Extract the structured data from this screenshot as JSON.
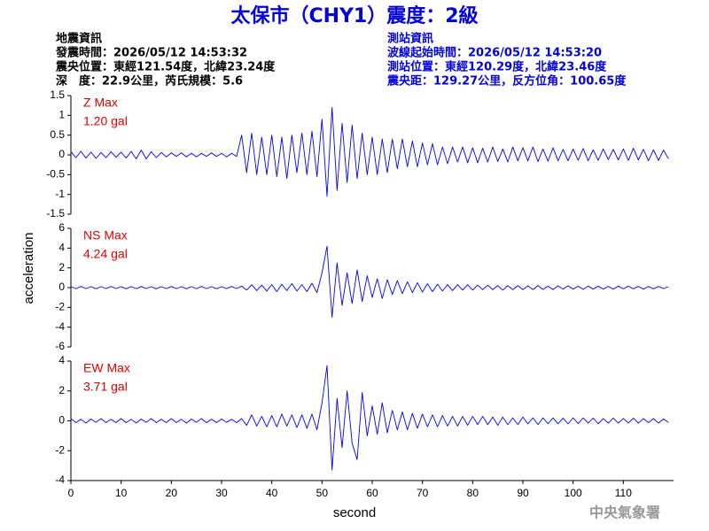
{
  "header": {
    "title": "太保市（CHY1）震度：2級",
    "left": [
      "地震資訊",
      "發震時間：2026/05/12 14:53:32",
      "震央位置：東經121.54度，北緯23.24度",
      "深　度：22.9公里，芮氏規模：5.6"
    ],
    "right": [
      "測站資訊",
      "波線起始時間：2026/05/12 14:53:20",
      "測站位置：東經120.29度，北緯23.46度",
      "震央距：129.27公里，反方位角：100.65度"
    ]
  },
  "axis_labels": {
    "y": "acceleration",
    "x": "second"
  },
  "footer": "中央氣象署",
  "chart_data": [
    {
      "type": "line",
      "annotation": [
        "Z Max",
        "1.20 gal"
      ],
      "color": "#0000ff",
      "xlim": [
        0,
        120
      ],
      "ylim": [
        -1.5,
        1.5
      ],
      "yticks": [
        -1.5,
        -1,
        -0.5,
        0,
        0.5,
        1,
        1.5
      ],
      "x": [
        0,
        1,
        2,
        3,
        4,
        5,
        6,
        7,
        8,
        9,
        10,
        11,
        12,
        13,
        14,
        15,
        16,
        17,
        18,
        19,
        20,
        21,
        22,
        23,
        24,
        25,
        26,
        27,
        28,
        29,
        30,
        31,
        32,
        33,
        34,
        35,
        36,
        37,
        38,
        39,
        40,
        41,
        42,
        43,
        44,
        45,
        46,
        47,
        48,
        49,
        50,
        51,
        52,
        53,
        54,
        55,
        56,
        57,
        58,
        59,
        60,
        61,
        62,
        63,
        64,
        65,
        66,
        67,
        68,
        69,
        70,
        71,
        72,
        73,
        74,
        75,
        76,
        77,
        78,
        79,
        80,
        81,
        82,
        83,
        84,
        85,
        86,
        87,
        88,
        89,
        90,
        91,
        92,
        93,
        94,
        95,
        96,
        97,
        98,
        99,
        100,
        101,
        102,
        103,
        104,
        105,
        106,
        107,
        108,
        109,
        110,
        111,
        112,
        113,
        114,
        115,
        116,
        117,
        118,
        119
      ],
      "values": [
        0.08,
        -0.07,
        0.09,
        -0.08,
        0.07,
        -0.09,
        0.06,
        -0.07,
        0.08,
        -0.06,
        0.07,
        -0.08,
        0.09,
        -0.1,
        0.12,
        -0.1,
        0.08,
        -0.07,
        0.06,
        -0.05,
        0.05,
        -0.04,
        0.05,
        -0.05,
        0.04,
        -0.05,
        0.04,
        -0.04,
        0.05,
        -0.04,
        0.04,
        -0.05,
        0.04,
        -0.04,
        0.5,
        -0.45,
        0.55,
        -0.5,
        0.45,
        -0.5,
        0.5,
        -0.55,
        0.45,
        -0.6,
        0.5,
        -0.45,
        0.55,
        -0.5,
        0.6,
        -0.55,
        0.9,
        -1.05,
        1.2,
        -0.9,
        0.8,
        -0.7,
        0.75,
        -0.6,
        0.55,
        -0.5,
        0.45,
        -0.5,
        0.4,
        -0.45,
        0.4,
        -0.35,
        0.4,
        -0.3,
        0.35,
        -0.3,
        0.3,
        -0.25,
        0.28,
        -0.25,
        0.2,
        -0.22,
        0.2,
        -0.18,
        0.2,
        -0.2,
        0.18,
        -0.2,
        0.17,
        -0.18,
        0.2,
        -0.17,
        0.15,
        -0.18,
        0.2,
        -0.15,
        0.18,
        -0.15,
        0.2,
        -0.17,
        0.15,
        -0.16,
        0.18,
        -0.15,
        0.14,
        -0.15,
        0.15,
        -0.14,
        0.16,
        -0.15,
        0.13,
        -0.14,
        0.15,
        -0.12,
        0.14,
        -0.13,
        0.15,
        -0.14,
        0.17,
        -0.13,
        0.14,
        -0.15,
        0.13,
        -0.14,
        0.12,
        -0.1
      ]
    },
    {
      "type": "line",
      "annotation": [
        "NS Max",
        "4.24 gal"
      ],
      "color": "#0000ff",
      "xlim": [
        0,
        120
      ],
      "ylim": [
        -6,
        6
      ],
      "yticks": [
        -6,
        -4,
        -2,
        0,
        2,
        4,
        6
      ],
      "x": [
        0,
        1,
        2,
        3,
        4,
        5,
        6,
        7,
        8,
        9,
        10,
        11,
        12,
        13,
        14,
        15,
        16,
        17,
        18,
        19,
        20,
        21,
        22,
        23,
        24,
        25,
        26,
        27,
        28,
        29,
        30,
        31,
        32,
        33,
        34,
        35,
        36,
        37,
        38,
        39,
        40,
        41,
        42,
        43,
        44,
        45,
        46,
        47,
        48,
        49,
        50,
        51,
        52,
        53,
        54,
        55,
        56,
        57,
        58,
        59,
        60,
        61,
        62,
        63,
        64,
        65,
        66,
        67,
        68,
        69,
        70,
        71,
        72,
        73,
        74,
        75,
        76,
        77,
        78,
        79,
        80,
        81,
        82,
        83,
        84,
        85,
        86,
        87,
        88,
        89,
        90,
        91,
        92,
        93,
        94,
        95,
        96,
        97,
        98,
        99,
        100,
        101,
        102,
        103,
        104,
        105,
        106,
        107,
        108,
        109,
        110,
        111,
        112,
        113,
        114,
        115,
        116,
        117,
        118,
        119
      ],
      "values": [
        0.1,
        -0.1,
        0.12,
        -0.1,
        0.1,
        -0.12,
        0.1,
        -0.1,
        0.12,
        -0.1,
        0.1,
        -0.12,
        0.1,
        -0.1,
        0.12,
        -0.1,
        0.1,
        -0.12,
        0.1,
        -0.1,
        0.12,
        -0.1,
        0.1,
        -0.12,
        0.1,
        -0.1,
        0.12,
        -0.1,
        0.1,
        -0.12,
        0.1,
        -0.1,
        0.12,
        -0.1,
        0.15,
        -0.25,
        0.3,
        -0.3,
        0.25,
        -0.35,
        0.3,
        -0.4,
        0.35,
        -0.3,
        0.4,
        -0.35,
        0.3,
        -0.4,
        0.45,
        -0.5,
        1.5,
        4.2,
        -3.0,
        2.5,
        -1.8,
        1.5,
        -1.6,
        1.8,
        -1.4,
        1.2,
        -1.0,
        0.9,
        -1.1,
        0.8,
        -0.7,
        0.7,
        -0.6,
        0.6,
        -0.5,
        0.5,
        -0.45,
        0.4,
        -0.4,
        0.35,
        -0.35,
        0.3,
        -0.3,
        0.3,
        -0.25,
        0.3,
        -0.25,
        0.25,
        -0.2,
        0.25,
        -0.2,
        0.2,
        -0.25,
        0.2,
        -0.2,
        0.2,
        -0.2,
        0.18,
        -0.2,
        0.2,
        -0.18,
        0.15,
        -0.2,
        0.18,
        -0.15,
        0.18,
        -0.15,
        0.15,
        -0.18,
        0.15,
        -0.15,
        0.15,
        -0.15,
        0.12,
        -0.15,
        0.15,
        -0.12,
        0.15,
        -0.12,
        0.12,
        -0.15,
        0.12,
        -0.12,
        0.12,
        -0.1,
        0.1
      ]
    },
    {
      "type": "line",
      "annotation": [
        "EW Max",
        "3.71 gal"
      ],
      "color": "#0000ff",
      "xlim": [
        0,
        120
      ],
      "ylim": [
        -4,
        4
      ],
      "yticks": [
        -4,
        -2,
        0,
        2,
        4
      ],
      "xticks": [
        0,
        10,
        20,
        30,
        40,
        50,
        60,
        70,
        80,
        90,
        100,
        110
      ],
      "x": [
        0,
        1,
        2,
        3,
        4,
        5,
        6,
        7,
        8,
        9,
        10,
        11,
        12,
        13,
        14,
        15,
        16,
        17,
        18,
        19,
        20,
        21,
        22,
        23,
        24,
        25,
        26,
        27,
        28,
        29,
        30,
        31,
        32,
        33,
        34,
        35,
        36,
        37,
        38,
        39,
        40,
        41,
        42,
        43,
        44,
        45,
        46,
        47,
        48,
        49,
        50,
        51,
        52,
        53,
        54,
        55,
        56,
        57,
        58,
        59,
        60,
        61,
        62,
        63,
        64,
        65,
        66,
        67,
        68,
        69,
        70,
        71,
        72,
        73,
        74,
        75,
        76,
        77,
        78,
        79,
        80,
        81,
        82,
        83,
        84,
        85,
        86,
        87,
        88,
        89,
        90,
        91,
        92,
        93,
        94,
        95,
        96,
        97,
        98,
        99,
        100,
        101,
        102,
        103,
        104,
        105,
        106,
        107,
        108,
        109,
        110,
        111,
        112,
        113,
        114,
        115,
        116,
        117,
        118,
        119
      ],
      "values": [
        0.15,
        -0.12,
        0.1,
        -0.15,
        0.12,
        -0.1,
        0.15,
        -0.12,
        0.1,
        -0.12,
        0.15,
        -0.12,
        0.1,
        -0.15,
        0.12,
        -0.1,
        0.15,
        -0.12,
        0.1,
        -0.12,
        0.15,
        -0.12,
        0.1,
        -0.15,
        0.12,
        -0.1,
        0.15,
        -0.12,
        0.1,
        -0.12,
        0.12,
        -0.1,
        0.1,
        -0.12,
        0.15,
        -0.3,
        0.4,
        -0.35,
        0.3,
        -0.4,
        0.35,
        -0.4,
        0.45,
        -0.35,
        0.4,
        -0.45,
        0.4,
        -0.5,
        0.45,
        -0.6,
        1.2,
        3.7,
        -3.3,
        1.5,
        -1.8,
        2.0,
        -1.5,
        -2.6,
        1.9,
        -1.0,
        1.0,
        -0.9,
        1.2,
        -0.8,
        0.7,
        -0.6,
        0.6,
        -0.6,
        0.5,
        -0.5,
        0.45,
        -0.4,
        0.4,
        -0.4,
        0.35,
        -0.35,
        0.3,
        -0.35,
        0.3,
        -0.3,
        0.3,
        -0.25,
        0.3,
        -0.25,
        0.25,
        -0.3,
        0.25,
        -0.25,
        0.2,
        -0.25,
        0.25,
        -0.2,
        0.2,
        -0.25,
        0.2,
        -0.2,
        0.2,
        -0.2,
        0.18,
        -0.2,
        0.2,
        -0.18,
        0.2,
        -0.15,
        0.18,
        -0.2,
        0.15,
        -0.15,
        0.18,
        -0.15,
        0.15,
        -0.15,
        0.18,
        -0.15,
        0.15,
        -0.12,
        0.15,
        -0.15,
        0.12,
        -0.1
      ]
    }
  ]
}
